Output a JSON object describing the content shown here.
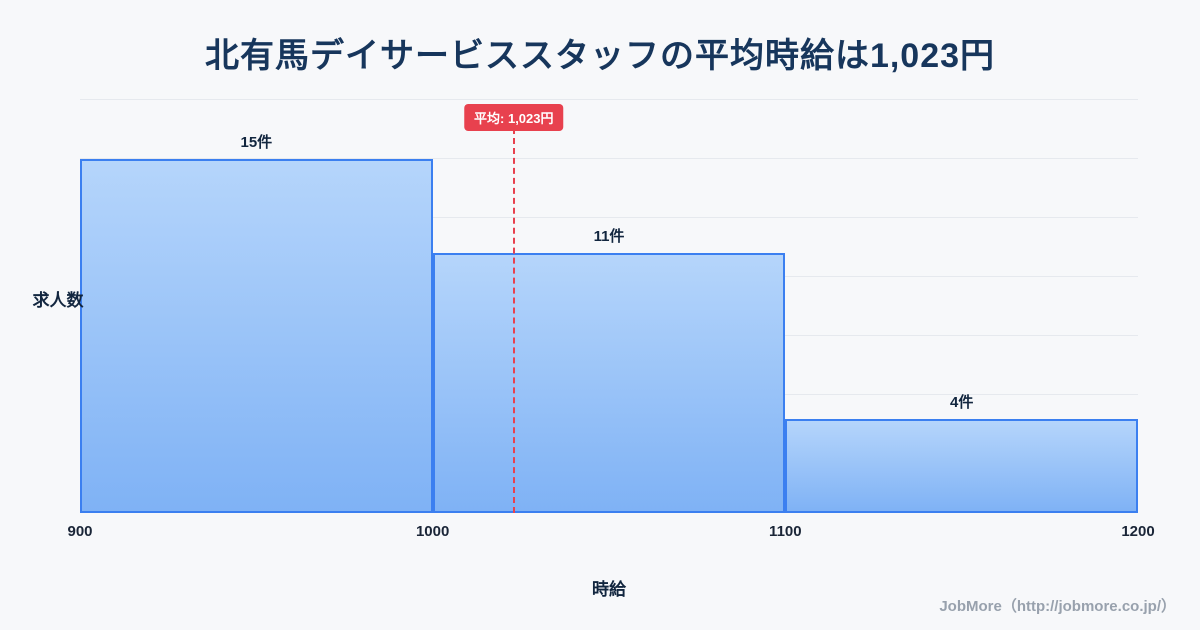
{
  "page": {
    "footer_credit": "JobMore（http://jobmore.co.jp/）"
  },
  "chart_data": {
    "type": "bar",
    "subtype": "histogram",
    "title": "北有馬デイサービススタッフの平均時給は1,023円",
    "xlabel": "時給",
    "ylabel": "求人数",
    "xlim": [
      900,
      1200
    ],
    "ylim": [
      0,
      17.5
    ],
    "grid_step": 2.5,
    "grid": "on",
    "x_ticks": [
      "900",
      "1000",
      "1100",
      "1200"
    ],
    "bins": [
      {
        "range": [
          900,
          1000
        ],
        "count": 15,
        "label": "15件"
      },
      {
        "range": [
          1000,
          1100
        ],
        "count": 11,
        "label": "11件"
      },
      {
        "range": [
          1100,
          1200
        ],
        "count": 4,
        "label": "4件"
      }
    ],
    "average": {
      "value": 1023,
      "label": "平均: 1,023円"
    },
    "colors": {
      "background": "#f7f8fa",
      "title_text": "#17365c",
      "bar_fill_top": "#b5d5fb",
      "bar_fill_bottom": "#7fb2f5",
      "bar_border": "#3b7ff0",
      "average_line": "#e8414e",
      "badge_bg": "#e8414e",
      "badge_text": "#ffffff",
      "grid": "#e6e9ee"
    }
  }
}
